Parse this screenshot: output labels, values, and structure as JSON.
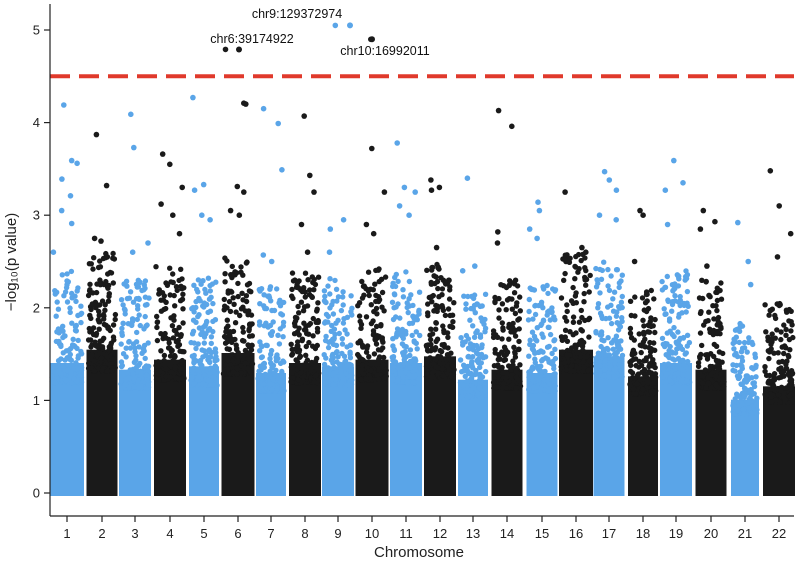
{
  "chart_data": {
    "type": "scatter",
    "subtype": "manhattan",
    "xlabel": "Chromosome",
    "ylabel": "−log₁₀(p value)",
    "categories": [
      "1",
      "2",
      "3",
      "4",
      "5",
      "6",
      "7",
      "8",
      "9",
      "10",
      "11",
      "12",
      "13",
      "14",
      "15",
      "16",
      "17",
      "18",
      "19",
      "20",
      "21",
      "22"
    ],
    "ylim": [
      0,
      5.3
    ],
    "yticks": [
      "0",
      "1",
      "2",
      "3",
      "4",
      "5"
    ],
    "threshold": 4.5,
    "grid": false,
    "legend": "none",
    "colors": {
      "odd": "#5aa5e8",
      "even": "#1a1a1a",
      "threshold": "#e0392b"
    },
    "peaks": [
      {
        "chr": "1",
        "values": [
          4.19,
          3.59,
          3.56,
          3.39,
          3.21,
          3.05,
          2.91,
          2.6
        ]
      },
      {
        "chr": "2",
        "values": [
          3.87,
          3.32,
          2.75,
          2.72,
          2.55
        ]
      },
      {
        "chr": "3",
        "values": [
          4.09,
          3.73,
          2.7,
          2.6
        ]
      },
      {
        "chr": "4",
        "values": [
          3.66,
          3.55,
          3.3,
          3.12,
          3.0,
          2.8
        ]
      },
      {
        "chr": "5",
        "values": [
          4.27,
          3.33,
          3.27,
          3.0,
          2.95
        ]
      },
      {
        "chr": "6",
        "values": [
          4.79,
          4.21,
          4.2,
          3.31,
          3.25,
          3.05,
          3.0
        ]
      },
      {
        "chr": "7",
        "values": [
          4.15,
          3.99,
          3.49,
          2.57,
          2.5
        ]
      },
      {
        "chr": "8",
        "values": [
          4.07,
          3.43,
          3.25,
          2.9,
          2.6
        ]
      },
      {
        "chr": "9",
        "values": [
          5.05,
          2.95,
          2.85,
          2.6
        ]
      },
      {
        "chr": "10",
        "values": [
          4.9,
          3.72,
          3.25,
          2.9,
          2.8
        ]
      },
      {
        "chr": "11",
        "values": [
          3.78,
          3.3,
          3.25,
          3.1,
          3.0
        ]
      },
      {
        "chr": "12",
        "values": [
          3.38,
          3.3,
          3.27,
          2.65
        ]
      },
      {
        "chr": "13",
        "values": [
          3.4,
          2.45,
          2.4
        ]
      },
      {
        "chr": "14",
        "values": [
          4.13,
          3.96,
          2.82,
          2.7
        ]
      },
      {
        "chr": "15",
        "values": [
          3.14,
          3.05,
          2.85,
          2.75
        ]
      },
      {
        "chr": "16",
        "values": [
          3.25,
          2.65,
          2.6,
          2.5
        ]
      },
      {
        "chr": "17",
        "values": [
          3.47,
          3.38,
          3.27,
          3.0,
          2.95
        ]
      },
      {
        "chr": "18",
        "values": [
          3.05,
          3.0,
          2.5
        ]
      },
      {
        "chr": "19",
        "values": [
          3.59,
          3.35,
          3.27,
          2.9
        ]
      },
      {
        "chr": "20",
        "values": [
          3.05,
          2.93,
          2.85,
          2.45
        ]
      },
      {
        "chr": "21",
        "values": [
          2.92,
          2.5,
          2.25
        ]
      },
      {
        "chr": "22",
        "values": [
          3.48,
          3.1,
          2.8,
          2.55
        ]
      }
    ],
    "annotations": [
      {
        "text": "chr9:129372974",
        "chr": "9",
        "value": 5.05
      },
      {
        "text": "chr6:39174922",
        "chr": "6",
        "value": 4.79
      },
      {
        "text": "chr10:16992011",
        "chr": "10",
        "value": 4.9
      }
    ]
  }
}
